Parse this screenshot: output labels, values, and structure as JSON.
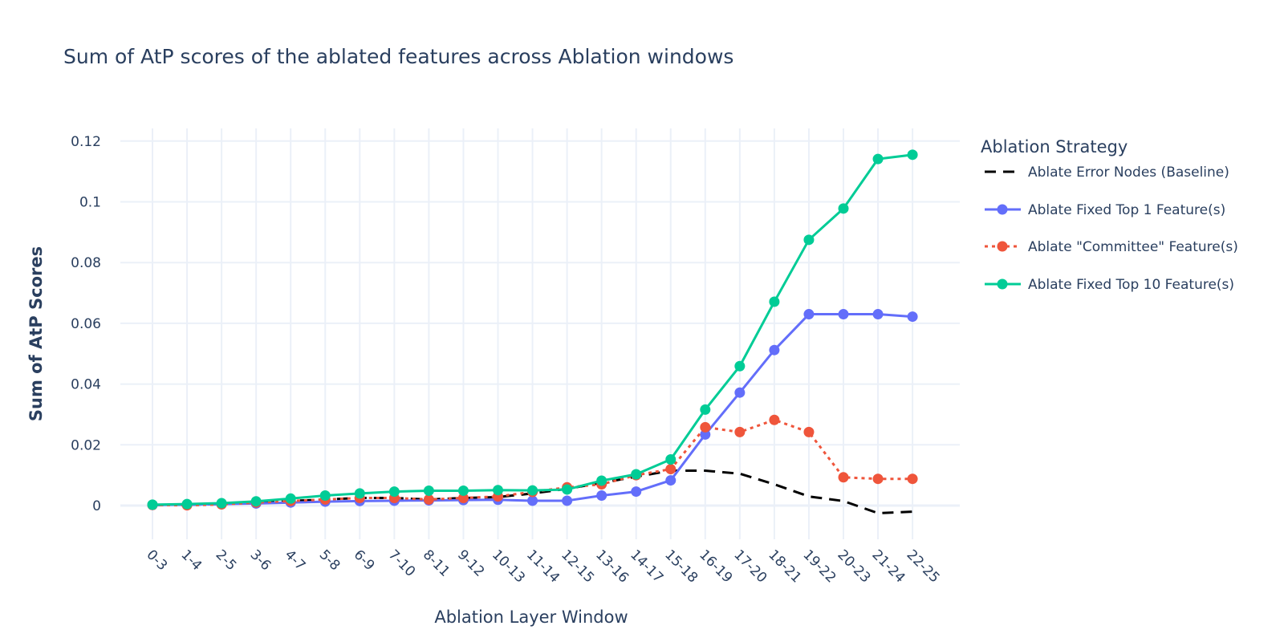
{
  "chart_data": {
    "type": "line",
    "title": "Sum of AtP scores of the ablated features across Ablation windows",
    "xlabel": "Ablation Layer Window",
    "ylabel": "Sum of AtP Scores",
    "categories": [
      "0-3",
      "1-4",
      "2-5",
      "3-6",
      "4-7",
      "5-8",
      "6-9",
      "7-10",
      "8-11",
      "9-12",
      "10-13",
      "11-14",
      "12-15",
      "13-16",
      "14-17",
      "15-18",
      "16-19",
      "17-20",
      "18-21",
      "19-22",
      "20-23",
      "21-24",
      "22-25"
    ],
    "ylim": [
      -0.013,
      0.124
    ],
    "yticks": [
      0,
      0.02,
      0.04,
      0.06,
      0.08,
      0.1,
      0.12
    ],
    "ytick_labels": [
      "0",
      "0.02",
      "0.04",
      "0.06",
      "0.08",
      "0.1",
      "0.12"
    ],
    "grid": true,
    "legend": {
      "title": "Ablation Strategy",
      "position": "right"
    },
    "series": [
      {
        "name": "Ablate Error Nodes (Baseline)",
        "color": "#000000",
        "dash": "dash",
        "markers": false,
        "values": [
          0.0002,
          0.0003,
          0.0005,
          0.001,
          0.0015,
          0.002,
          0.0025,
          0.0025,
          0.002,
          0.0025,
          0.0028,
          0.004,
          0.0055,
          0.0075,
          0.0095,
          0.0115,
          0.0115,
          0.0105,
          0.007,
          0.003,
          0.0015,
          -0.0025,
          -0.002
        ]
      },
      {
        "name": "Ablate Fixed Top 1 Feature(s)",
        "color": "#636efa",
        "dash": "solid",
        "markers": true,
        "values": [
          0.0002,
          0.0003,
          0.0005,
          0.0007,
          0.001,
          0.0013,
          0.0015,
          0.0016,
          0.0017,
          0.0018,
          0.0019,
          0.0016,
          0.0016,
          0.0033,
          0.0046,
          0.0083,
          0.0234,
          0.0372,
          0.0512,
          0.063,
          0.063,
          0.063,
          0.0622
        ]
      },
      {
        "name": "Ablate \"Committee\" Feature(s)",
        "color": "#ef553b",
        "dash": "dot",
        "markers": true,
        "values": [
          0.0002,
          0.0001,
          0.0004,
          0.001,
          0.0015,
          0.002,
          0.0025,
          0.0025,
          0.002,
          0.0025,
          0.003,
          0.0045,
          0.006,
          0.007,
          0.01,
          0.012,
          0.0258,
          0.0242,
          0.0282,
          0.0242,
          0.0093,
          0.0088,
          0.0088
        ]
      },
      {
        "name": "Ablate Fixed Top 10 Feature(s)",
        "color": "#00cc96",
        "dash": "solid",
        "markers": true,
        "values": [
          0.0003,
          0.0005,
          0.0008,
          0.0014,
          0.0023,
          0.0033,
          0.004,
          0.0046,
          0.0049,
          0.0049,
          0.0051,
          0.005,
          0.0053,
          0.0082,
          0.0103,
          0.0152,
          0.0316,
          0.0459,
          0.0671,
          0.0875,
          0.0978,
          0.1141,
          0.1155
        ]
      }
    ]
  }
}
